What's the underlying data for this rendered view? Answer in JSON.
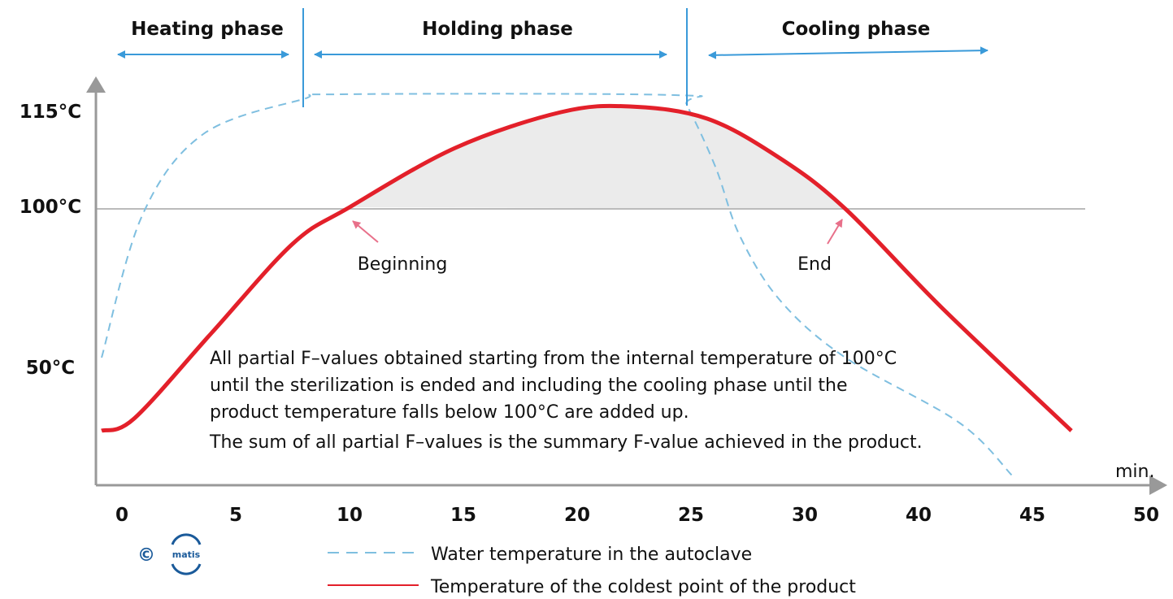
{
  "phases": [
    "Heating phase",
    "Holding phase",
    "Cooling phase"
  ],
  "y_axis": {
    "labels": [
      "115°C",
      "100°C",
      "50°C"
    ]
  },
  "x_axis": {
    "labels": [
      "0",
      "5",
      "10",
      "15",
      "20",
      "25",
      "30",
      "40",
      "45",
      "50"
    ],
    "unit": "min."
  },
  "annotations": {
    "beginning": "Beginning",
    "end": "End"
  },
  "note": [
    "All partial F–values obtained starting from the internal temperature of 100°C",
    "until the sterilization is ended and including the cooling phase until the",
    "product temperature falls below 100°C are added up.",
    "The sum of all partial F–values is the summary F-value achieved in the product."
  ],
  "legend": [
    "Water temperature in the autoclave",
    "Temperature of the coldest point of the product"
  ],
  "copyright": {
    "symbol": "©",
    "logo": "matis"
  }
}
